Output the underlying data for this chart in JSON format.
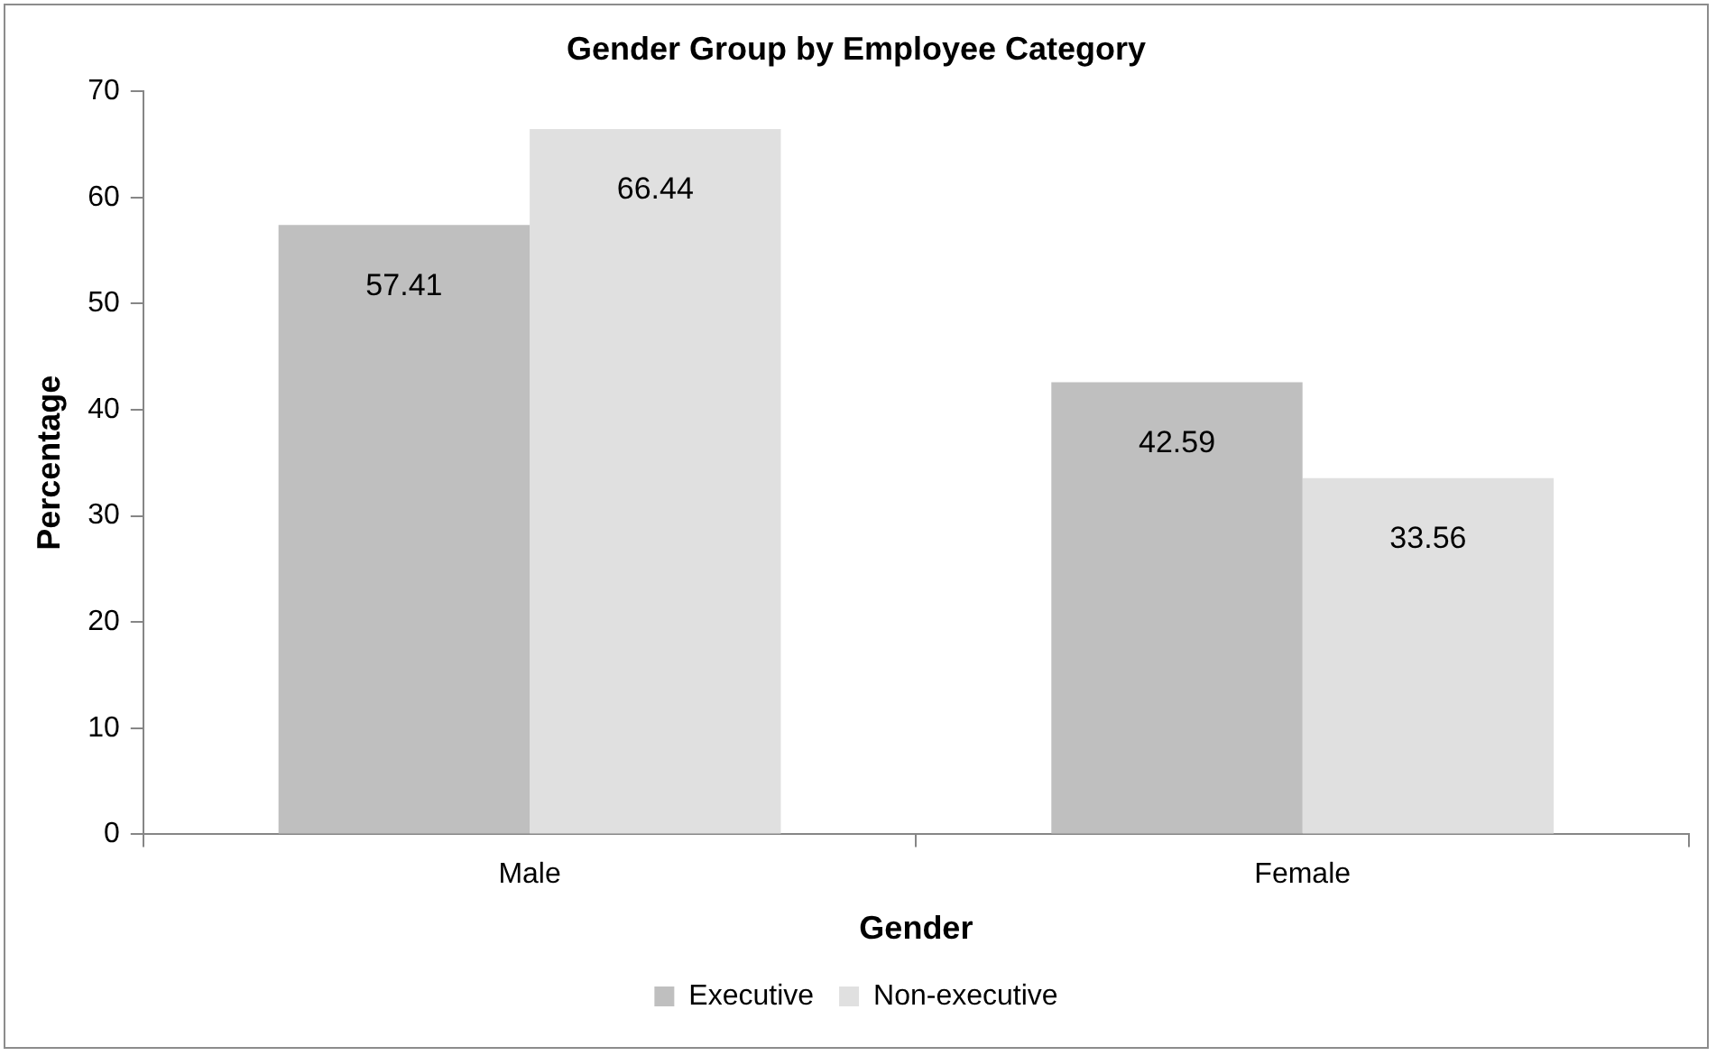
{
  "chart_data": {
    "type": "bar",
    "title": "Gender Group by Employee Category",
    "xlabel": "Gender",
    "ylabel": "Percentage",
    "categories": [
      "Male",
      "Female"
    ],
    "series": [
      {
        "name": "Executive",
        "color": "#bfbfbf",
        "values": [
          57.41,
          42.59
        ]
      },
      {
        "name": "Non-executive",
        "color": "#e0e0e0",
        "values": [
          66.44,
          33.56
        ]
      }
    ],
    "ylim": [
      0,
      70
    ],
    "yticks": [
      0,
      10,
      20,
      30,
      40,
      50,
      60,
      70
    ],
    "grid": false,
    "legend": "bottom",
    "data_labels": true
  }
}
